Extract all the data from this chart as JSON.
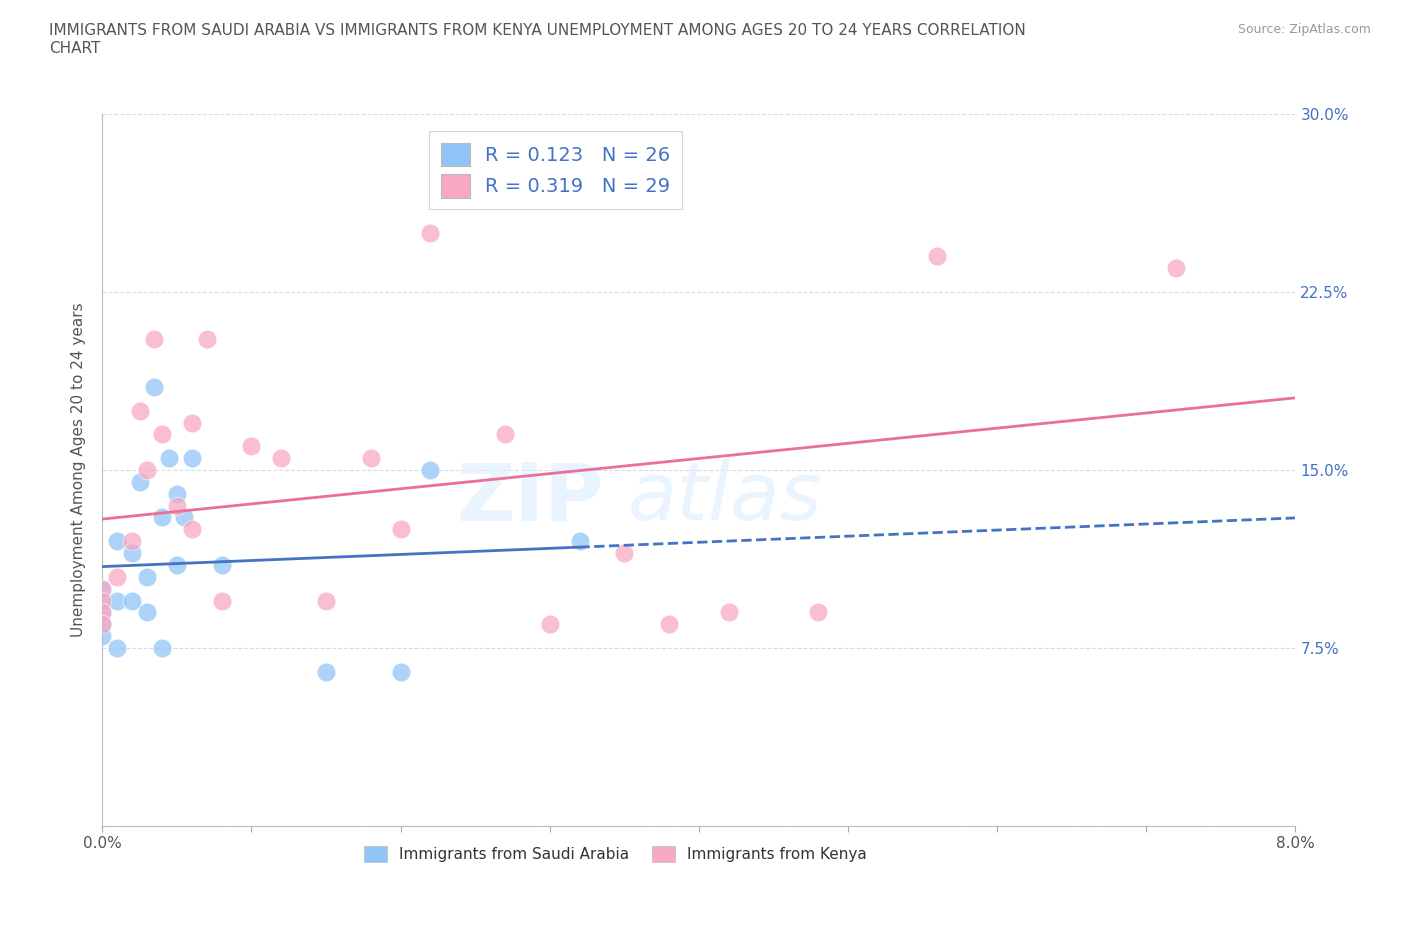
{
  "title": "IMMIGRANTS FROM SAUDI ARABIA VS IMMIGRANTS FROM KENYA UNEMPLOYMENT AMONG AGES 20 TO 24 YEARS CORRELATION\nCHART",
  "source_text": "Source: ZipAtlas.com",
  "xlabel": "",
  "ylabel": "Unemployment Among Ages 20 to 24 years",
  "xlim": [
    0.0,
    0.08
  ],
  "ylim": [
    0.0,
    0.3
  ],
  "xticks": [
    0.0,
    0.01,
    0.02,
    0.03,
    0.04,
    0.05,
    0.06,
    0.07,
    0.08
  ],
  "xticklabels": [
    "0.0%",
    "",
    "",
    "",
    "",
    "",
    "",
    "",
    "8.0%"
  ],
  "yticks": [
    0.0,
    0.075,
    0.15,
    0.225,
    0.3
  ],
  "yticklabels": [
    "",
    "7.5%",
    "15.0%",
    "22.5%",
    "30.0%"
  ],
  "saudi_color": "#92c5f7",
  "kenya_color": "#f7a8c4",
  "saudi_line_color": "#4472c4",
  "kenya_line_color": "#e8709a",
  "saudi_R": 0.123,
  "saudi_N": 26,
  "kenya_R": 0.319,
  "kenya_N": 29,
  "saudi_points_x": [
    0.0,
    0.0,
    0.0,
    0.0,
    0.0,
    0.001,
    0.001,
    0.001,
    0.002,
    0.002,
    0.0025,
    0.003,
    0.003,
    0.0035,
    0.004,
    0.004,
    0.0045,
    0.005,
    0.005,
    0.0055,
    0.006,
    0.008,
    0.015,
    0.02,
    0.022,
    0.032
  ],
  "saudi_points_y": [
    0.1,
    0.095,
    0.09,
    0.085,
    0.08,
    0.12,
    0.095,
    0.075,
    0.115,
    0.095,
    0.145,
    0.105,
    0.09,
    0.185,
    0.13,
    0.075,
    0.155,
    0.14,
    0.11,
    0.13,
    0.155,
    0.11,
    0.065,
    0.065,
    0.15,
    0.12
  ],
  "kenya_points_x": [
    0.0,
    0.0,
    0.0,
    0.0,
    0.001,
    0.002,
    0.0025,
    0.003,
    0.0035,
    0.004,
    0.005,
    0.006,
    0.006,
    0.007,
    0.008,
    0.01,
    0.012,
    0.015,
    0.018,
    0.02,
    0.022,
    0.027,
    0.03,
    0.035,
    0.038,
    0.042,
    0.048,
    0.056,
    0.072
  ],
  "kenya_points_y": [
    0.1,
    0.095,
    0.09,
    0.085,
    0.105,
    0.12,
    0.175,
    0.15,
    0.205,
    0.165,
    0.135,
    0.125,
    0.17,
    0.205,
    0.095,
    0.16,
    0.155,
    0.095,
    0.155,
    0.125,
    0.25,
    0.165,
    0.085,
    0.115,
    0.085,
    0.09,
    0.09,
    0.24,
    0.235
  ],
  "watermark_text": "ZIP",
  "watermark_text2": "atlas",
  "background_color": "#ffffff",
  "grid_color": "#cccccc"
}
